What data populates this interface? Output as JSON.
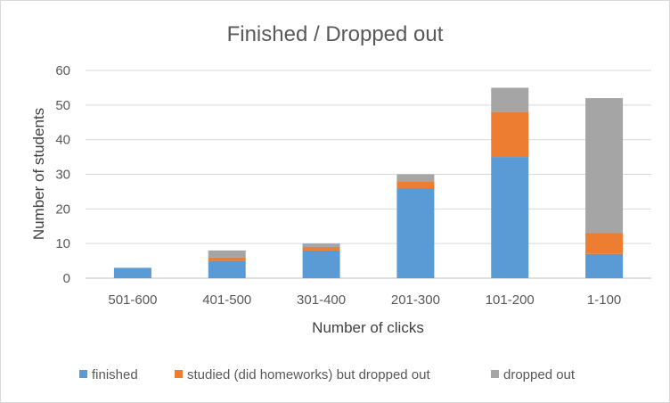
{
  "chart_data": {
    "type": "bar",
    "stacked": true,
    "title": "Finished / Dropped out",
    "xlabel": "Number of clicks",
    "ylabel": "Number of students",
    "categories": [
      "501-600",
      "401-500",
      "301-400",
      "201-300",
      "101-200",
      "1-100"
    ],
    "series": [
      {
        "name": "finished",
        "color": "#5B9BD5",
        "values": [
          3,
          5,
          8,
          26,
          35,
          7
        ]
      },
      {
        "name": "studied (did homeworks) but dropped out",
        "color": "#ED7D31",
        "values": [
          0,
          1,
          1,
          2,
          13,
          6
        ]
      },
      {
        "name": "dropped out",
        "color": "#A5A5A5",
        "values": [
          0,
          2,
          1,
          2,
          7,
          39
        ]
      }
    ],
    "ylim": [
      0,
      60
    ],
    "yticks": [
      0,
      10,
      20,
      30,
      40,
      50,
      60
    ],
    "grid": true,
    "legend_position": "bottom"
  }
}
